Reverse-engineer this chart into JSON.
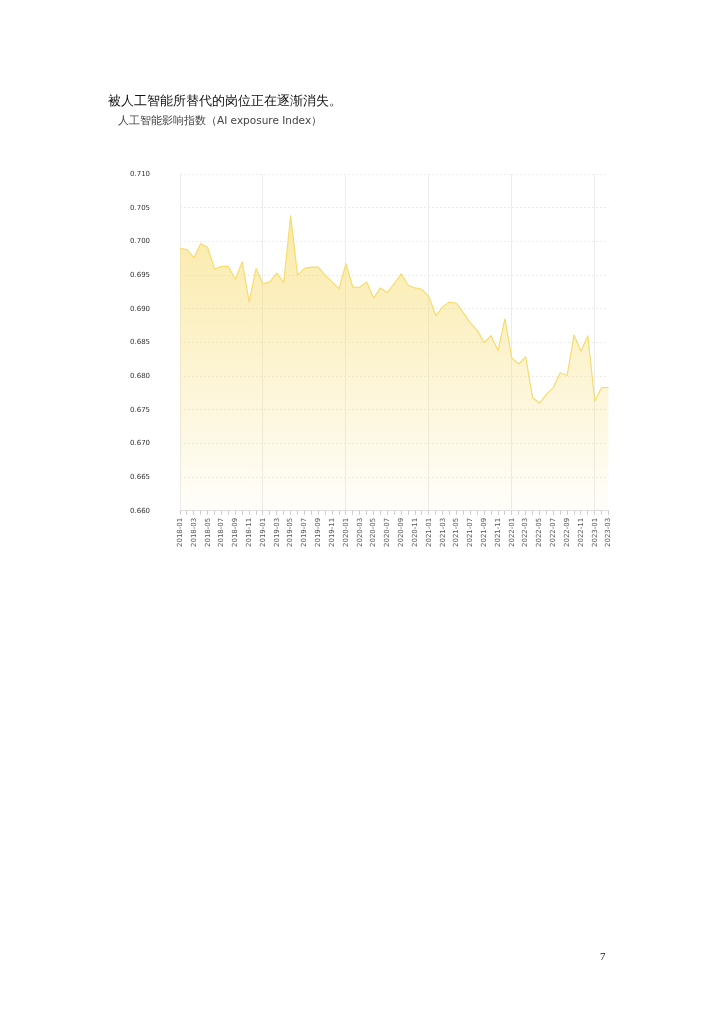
{
  "chart_data": {
    "type": "area",
    "title": "被人工智能所替代的岗位正在逐渐消失。",
    "subtitle": "人工智能影响指数（AI exposure Index）",
    "categories": [
      "2018-01",
      null,
      "2018-03",
      null,
      "2018-05",
      null,
      "2018-07",
      null,
      "2018-09",
      null,
      "2018-11",
      null,
      "2019-01",
      null,
      "2019-03",
      null,
      "2019-05",
      null,
      "2019-07",
      null,
      "2019-09",
      null,
      "2019-11",
      null,
      "2020-01",
      null,
      "2020-03",
      null,
      "2020-05",
      null,
      "2020-07",
      null,
      "2020-09",
      null,
      "2020-11",
      null,
      "2021-01",
      null,
      "2021-03",
      null,
      "2021-05",
      null,
      "2021-07",
      null,
      "2021-09",
      null,
      "2021-11",
      null,
      "2022-01",
      null,
      "2022-03",
      null,
      "2022-05",
      null,
      "2022-07",
      null,
      "2022-09",
      null,
      "2022-11",
      null,
      "2023-01",
      null,
      "2023-03"
    ],
    "series": [
      {
        "color": "#f7dc6f",
        "values": [
          0.699,
          0.6988,
          0.6976,
          0.6997,
          0.6991,
          0.6959,
          0.6963,
          0.6963,
          0.6944,
          0.697,
          0.691,
          0.696,
          0.6937,
          0.694,
          0.6953,
          0.6939,
          0.7038,
          0.695,
          0.696,
          0.6962,
          0.6962,
          0.695,
          0.694,
          0.693,
          0.6967,
          0.6932,
          0.6932,
          0.694,
          0.6916,
          0.6931,
          0.6924,
          0.6938,
          0.6952,
          0.6935,
          0.6931,
          0.6929,
          0.6918,
          0.689,
          0.6903,
          0.691,
          0.6908,
          0.6894,
          0.6879,
          0.6868,
          0.685,
          0.686,
          0.6838,
          0.6885,
          0.6827,
          0.6818,
          0.6829,
          0.6768,
          0.676,
          0.6773,
          0.6783,
          0.6805,
          0.6801,
          0.6861,
          0.6837,
          0.686,
          0.6763,
          0.6783,
          0.6783
        ]
      }
    ],
    "ylim": [
      0.66,
      0.71
    ],
    "yticks": [
      {
        "value": 0.66,
        "label": "0.660"
      },
      {
        "value": 0.665,
        "label": "0.665"
      },
      {
        "value": 0.67,
        "label": "0.670"
      },
      {
        "value": 0.675,
        "label": "0.675"
      },
      {
        "value": 0.68,
        "label": "0.680"
      },
      {
        "value": 0.685,
        "label": "0.685"
      },
      {
        "value": 0.69,
        "label": "0.690"
      },
      {
        "value": 0.695,
        "label": "0.695"
      },
      {
        "value": 0.7,
        "label": "0.700"
      },
      {
        "value": 0.705,
        "label": "0.705"
      },
      {
        "value": 0.71,
        "label": "0.710"
      }
    ],
    "grid": true,
    "marker": "none",
    "annotations": [
      "7"
    ]
  }
}
